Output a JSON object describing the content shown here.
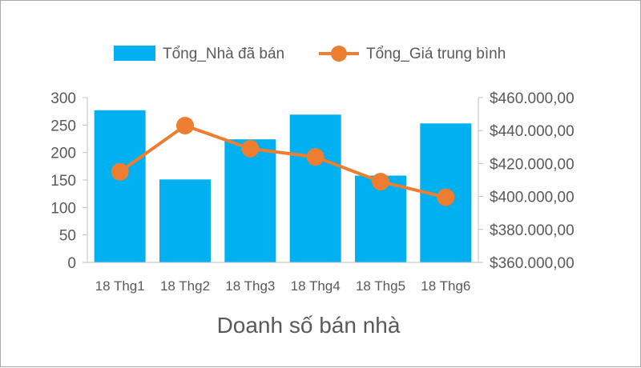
{
  "chart_data": {
    "type": "bar",
    "title": "Doanh số bán nhà",
    "categories": [
      "18 Thg1",
      "18 Thg2",
      "18 Thg3",
      "18 Thg4",
      "18 Thg5",
      "18 Thg6"
    ],
    "series": [
      {
        "name": "Tổng_Nhà đã bán",
        "type": "bar",
        "axis": "left",
        "color": "#00B0F0",
        "values": [
          277,
          151,
          224,
          269,
          158,
          253
        ]
      },
      {
        "name": "Tổng_Giá trung bình",
        "type": "line",
        "axis": "right",
        "color": "#ED7D31",
        "values": [
          415000,
          443000,
          429000,
          424000,
          409000,
          399500
        ]
      }
    ],
    "y_left": {
      "min": 0,
      "max": 300,
      "ticks": [
        0,
        50,
        100,
        150,
        200,
        250,
        300
      ],
      "tick_labels": [
        "0",
        "50",
        "100",
        "150",
        "200",
        "250",
        "300"
      ]
    },
    "y_right": {
      "min": 360000,
      "max": 460000,
      "ticks": [
        360000,
        380000,
        400000,
        420000,
        440000,
        460000
      ],
      "tick_labels": [
        "$360.000,00",
        "$380.000,00",
        "$400.000,00",
        "$420.000,00",
        "$440.000,00",
        "$460.000,00"
      ]
    },
    "legend_position": "top",
    "grid": false
  }
}
